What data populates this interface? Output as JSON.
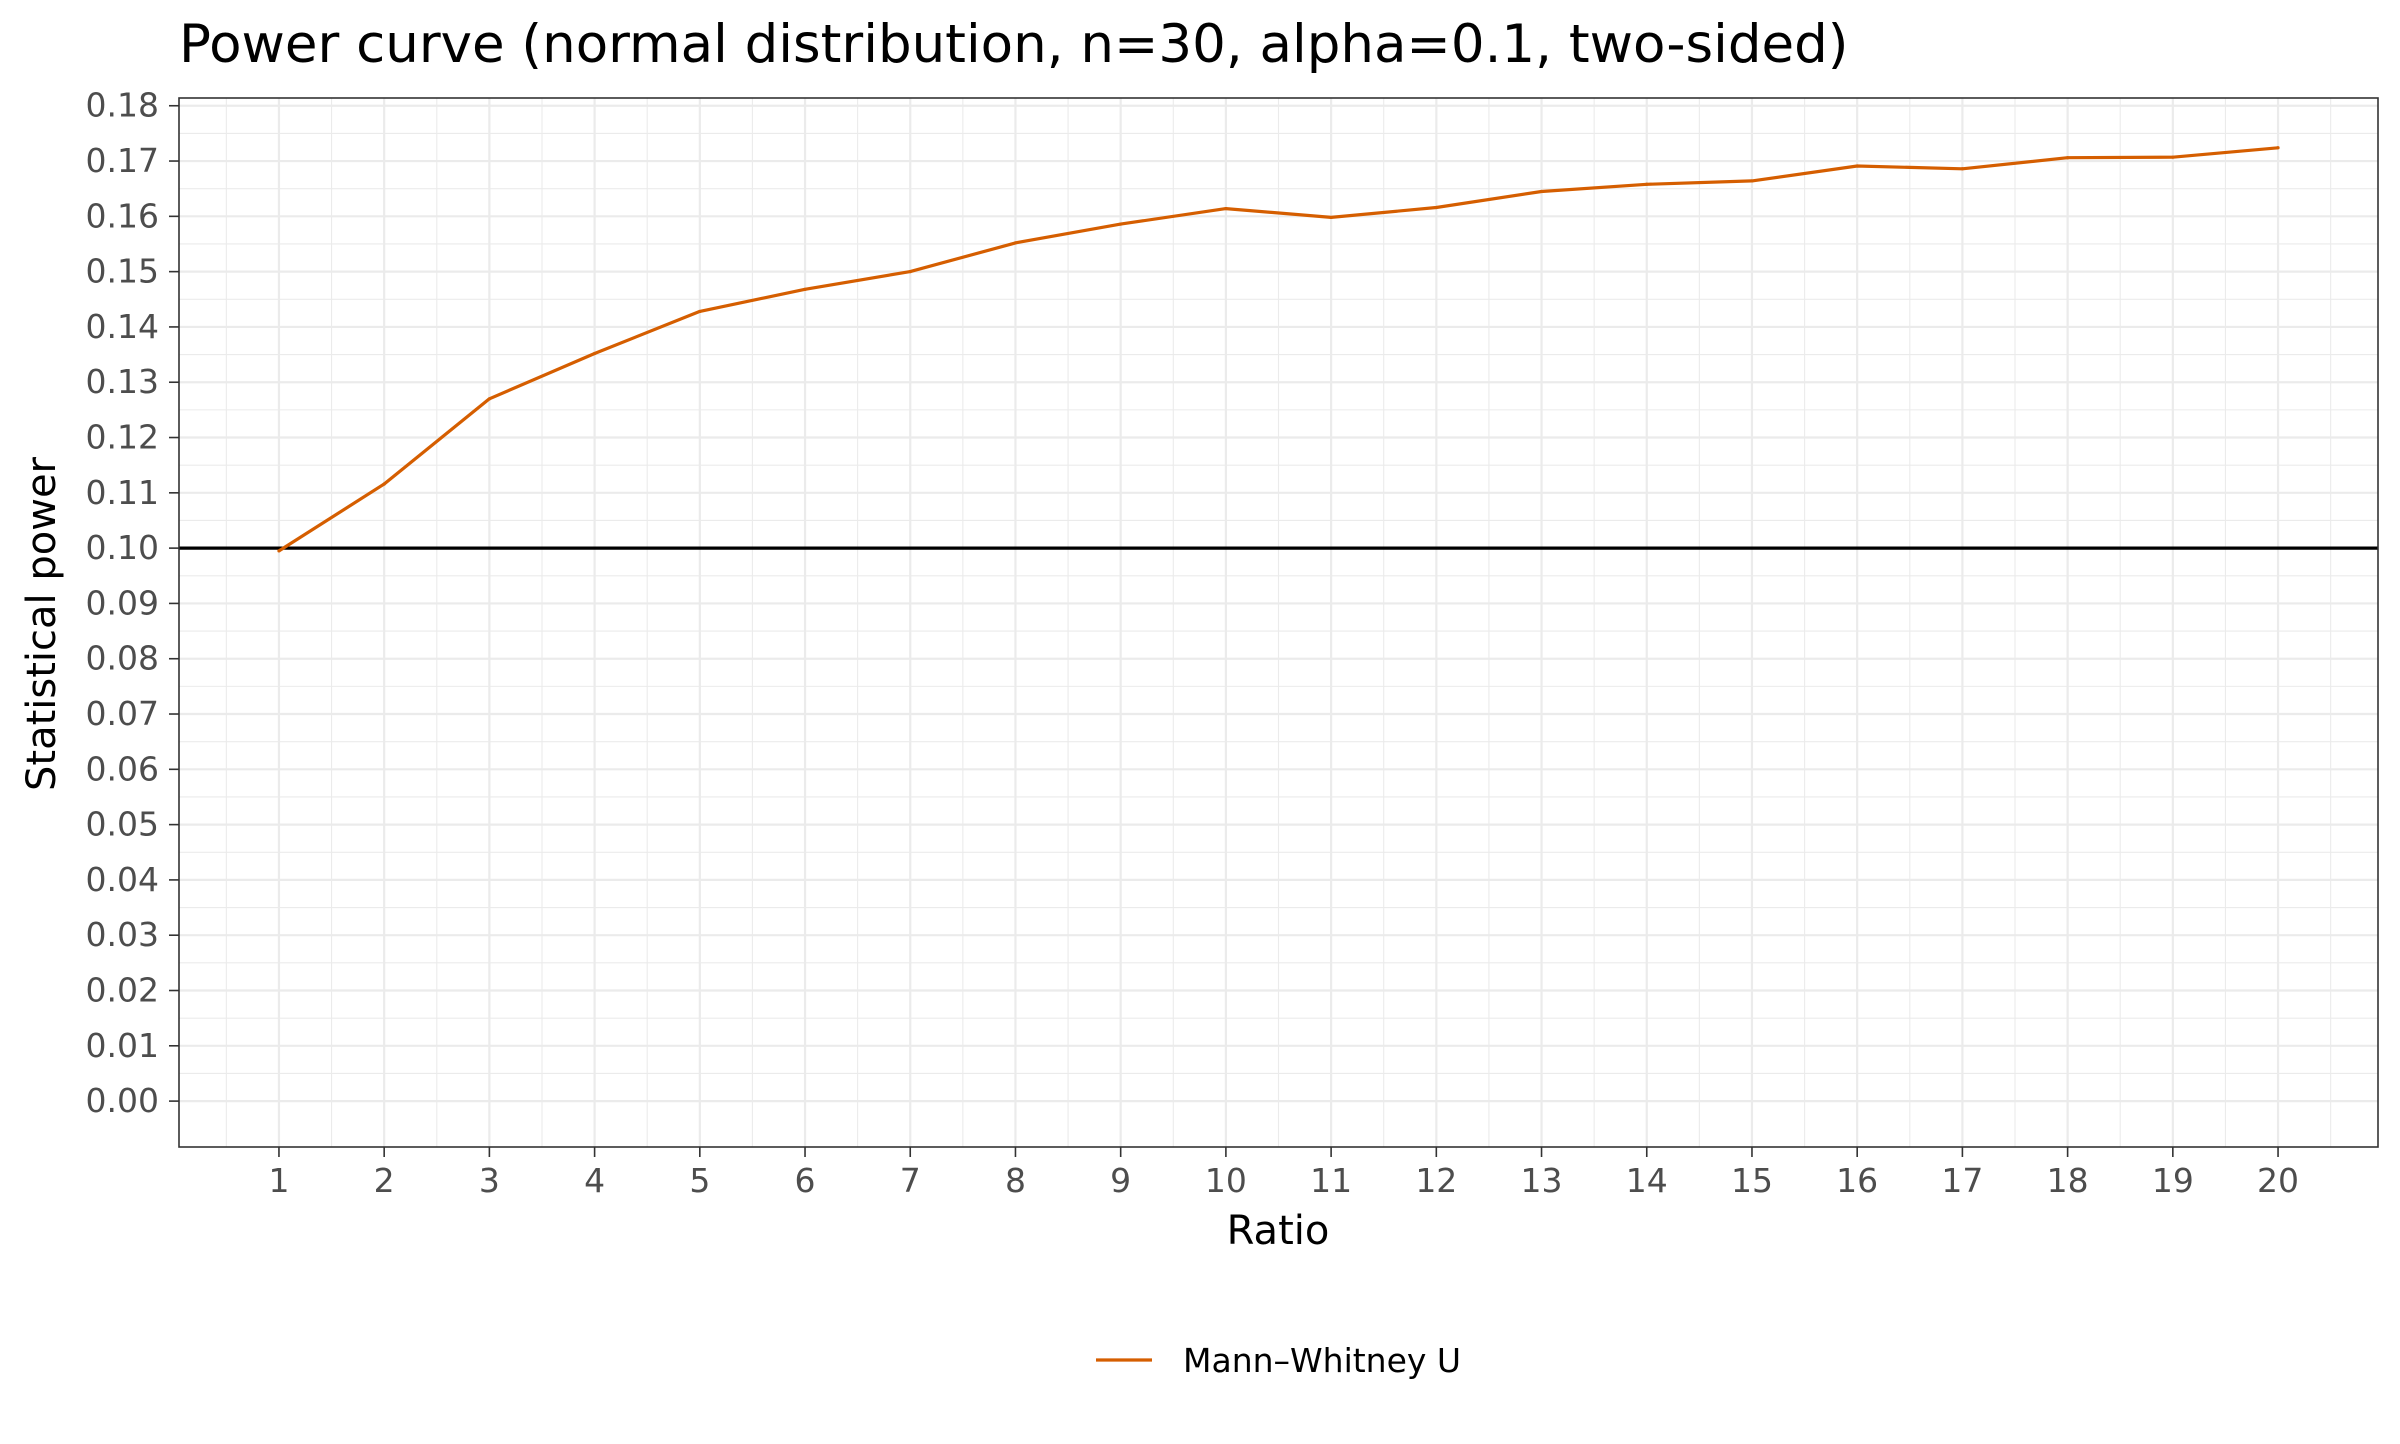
{
  "chart_data": {
    "type": "line",
    "title": "Power curve (normal distribution, n=30, alpha=0.1, two-sided)",
    "xlabel": "Ratio",
    "ylabel": "Statistical power",
    "x": [
      1,
      2,
      3,
      4,
      5,
      6,
      7,
      8,
      9,
      10,
      11,
      12,
      13,
      14,
      15,
      16,
      17,
      18,
      19,
      20
    ],
    "series": [
      {
        "name": "Mann–Whitney U",
        "color": "#d55e00",
        "values": [
          0.0995,
          0.1116,
          0.127,
          0.1352,
          0.1428,
          0.1468,
          0.15,
          0.1552,
          0.1586,
          0.1614,
          0.1598,
          0.1616,
          0.1645,
          0.1658,
          0.1664,
          0.1691,
          0.1686,
          0.1706,
          0.1707,
          0.1724
        ]
      }
    ],
    "reference_line": {
      "y": 0.1,
      "color": "#000000"
    },
    "xlim": [
      0.05,
      20.95
    ],
    "ylim": [
      -0.0083,
      0.1814
    ],
    "x_ticks": [
      "1",
      "2",
      "3",
      "4",
      "5",
      "6",
      "7",
      "8",
      "9",
      "10",
      "11",
      "12",
      "13",
      "14",
      "15",
      "16",
      "17",
      "18",
      "19",
      "20"
    ],
    "y_ticks": [
      "0.00",
      "0.01",
      "0.02",
      "0.03",
      "0.04",
      "0.05",
      "0.06",
      "0.07",
      "0.08",
      "0.09",
      "0.10",
      "0.11",
      "0.12",
      "0.13",
      "0.14",
      "0.15",
      "0.16",
      "0.17",
      "0.18"
    ],
    "grid": true,
    "legend_position": "bottom"
  }
}
